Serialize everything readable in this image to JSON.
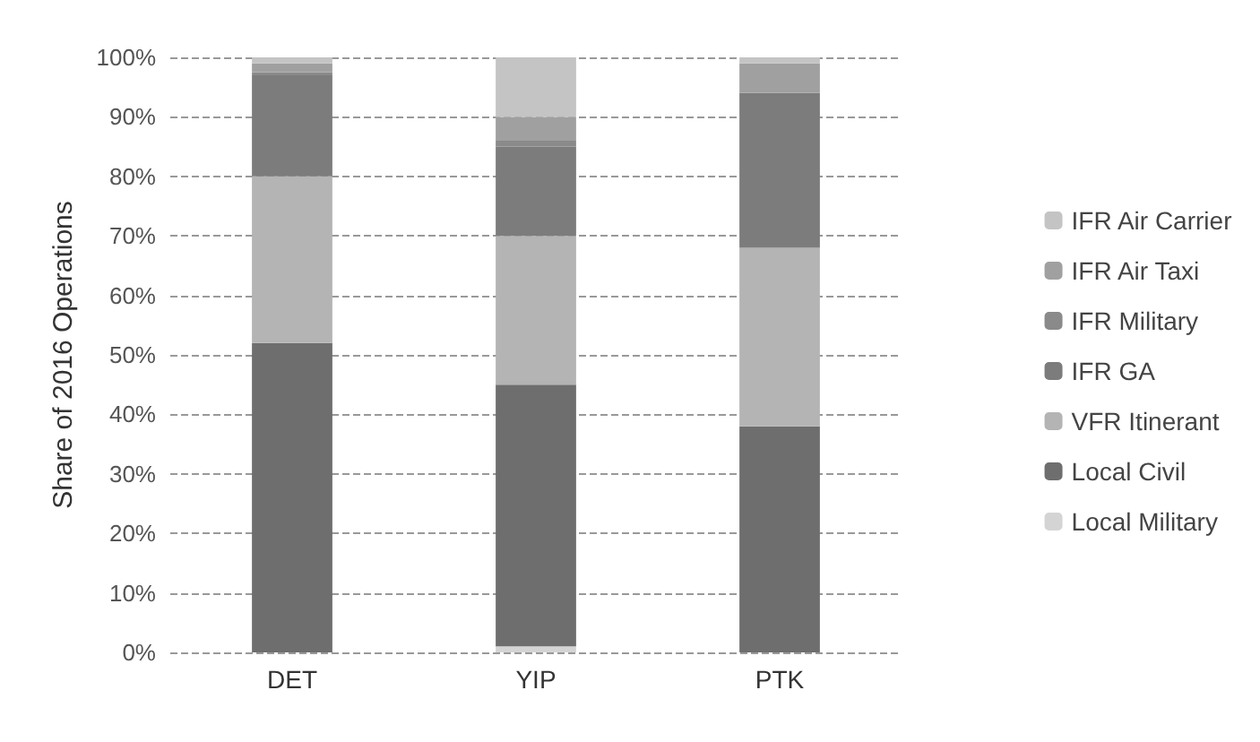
{
  "chart_data": {
    "type": "bar",
    "stacked": true,
    "ylabel": "Share of 2016 Operations",
    "categories": [
      "DET",
      "YIP",
      "PTK"
    ],
    "series": [
      {
        "name": "Local Military",
        "color": "#d4d4d4",
        "values": [
          0,
          1,
          0
        ]
      },
      {
        "name": "Local Civil",
        "color": "#6e6e6e",
        "values": [
          52,
          44,
          38
        ]
      },
      {
        "name": "VFR Itinerant",
        "color": "#b4b4b4",
        "values": [
          28,
          25,
          30
        ]
      },
      {
        "name": "IFR GA",
        "color": "#7c7c7c",
        "values": [
          17,
          15,
          26
        ]
      },
      {
        "name": "IFR Military",
        "color": "#8a8a8a",
        "values": [
          0.5,
          1,
          0
        ]
      },
      {
        "name": "IFR Air Taxi",
        "color": "#a0a0a0",
        "values": [
          1.5,
          4,
          5
        ]
      },
      {
        "name": "IFR Air Carrier",
        "color": "#c4c4c4",
        "values": [
          1,
          10,
          1
        ]
      }
    ],
    "ylim": [
      0,
      100
    ],
    "yticks": [
      {
        "value": 0,
        "label": "0%"
      },
      {
        "value": 10,
        "label": "10%"
      },
      {
        "value": 20,
        "label": "20%"
      },
      {
        "value": 30,
        "label": "30%"
      },
      {
        "value": 40,
        "label": "40%"
      },
      {
        "value": 50,
        "label": "50%"
      },
      {
        "value": 60,
        "label": "60%"
      },
      {
        "value": 70,
        "label": "70%"
      },
      {
        "value": 80,
        "label": "80%"
      },
      {
        "value": 90,
        "label": "90%"
      },
      {
        "value": 100,
        "label": "100%"
      }
    ],
    "grid": "y",
    "legend": "right"
  }
}
